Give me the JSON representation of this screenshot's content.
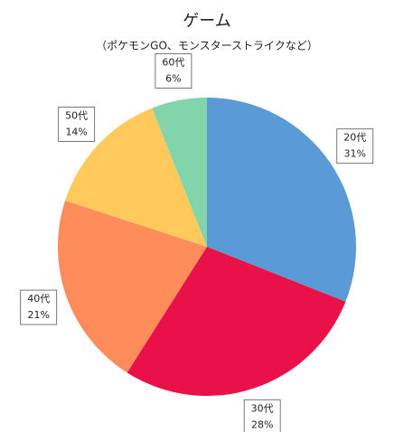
{
  "chart_data": {
    "type": "pie",
    "title": "ゲーム",
    "subtitle": "（ポケモンGO、モンスターストライクなど）",
    "categories": [
      "20代",
      "30代",
      "40代",
      "50代",
      "60代"
    ],
    "values": [
      31,
      28,
      21,
      14,
      6
    ],
    "value_labels": [
      "31%",
      "28%",
      "21%",
      "14%",
      "6%"
    ],
    "colors": [
      "#5b9bd5",
      "#e8114a",
      "#ff8c5a",
      "#ffc95c",
      "#82d4aa"
    ]
  }
}
